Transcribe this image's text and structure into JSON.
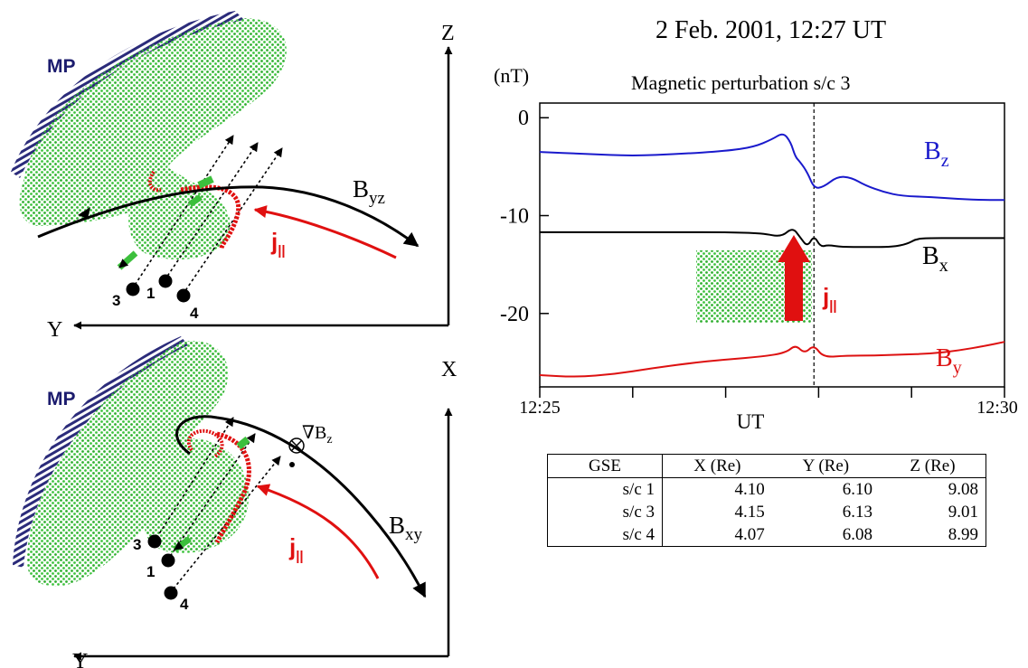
{
  "colors": {
    "bz": "#1a1acc",
    "bx": "#000000",
    "by": "#dd1111",
    "current": "#e01010",
    "region": "#3cbf3c",
    "mp_hatch": "#2b2b7a",
    "mp_label": "#1c1c6e"
  },
  "top_diagram": {
    "mp_label": "MP",
    "axis_vertical": "Z",
    "axis_horizontal": "Y",
    "field_label_main": "B",
    "field_label_sub": "yz",
    "current_label_main": "j",
    "current_label_sub": "||",
    "sc_labels": [
      "3",
      "1",
      "4"
    ]
  },
  "bottom_diagram": {
    "mp_label": "MP",
    "axis_vertical": "X",
    "axis_horizontal": "Y",
    "field_label_main": "B",
    "field_label_sub": "xy",
    "current_label_main": "j",
    "current_label_sub": "||",
    "gradient_symbol": "∇",
    "gradient_label_main": "B",
    "gradient_label_sub": "z",
    "sc_labels": [
      "3",
      "1",
      "4"
    ]
  },
  "chart_data": {
    "type": "line",
    "title": "2 Feb. 2001, 12:27 UT",
    "subtitle": "Magnetic perturbation s/c 3",
    "ylabel": "(nT)",
    "xlabel": "UT",
    "x_start_label": "12:25",
    "x_end_label": "12:30",
    "xlim_minutes": [
      0,
      5
    ],
    "ylim": [
      -27.5,
      1.5
    ],
    "yticks": [
      0,
      -10,
      -20
    ],
    "ytick_labels": [
      "0",
      "-10",
      "-20"
    ],
    "event_marker_minute": 2.95,
    "series": [
      {
        "name_main": "B",
        "name_sub": "z",
        "color": "#1a1acc",
        "x": [
          0,
          0.5,
          1.0,
          1.5,
          2.0,
          2.3,
          2.5,
          2.62,
          2.7,
          2.75,
          2.8,
          2.88,
          2.95,
          3.05,
          3.2,
          3.35,
          3.5,
          3.7,
          3.9,
          4.2,
          4.5,
          4.8,
          5.0
        ],
        "values": [
          -3.5,
          -3.7,
          -3.9,
          -3.7,
          -3.4,
          -3.0,
          -2.2,
          -1.5,
          -2.5,
          -4.0,
          -4.5,
          -5.6,
          -7.2,
          -7.1,
          -6.0,
          -6.1,
          -6.9,
          -7.6,
          -8.0,
          -8.1,
          -8.3,
          -8.4,
          -8.4
        ]
      },
      {
        "name_main": "B",
        "name_sub": "x",
        "color": "#000000",
        "x": [
          0,
          0.5,
          1.0,
          1.5,
          2.0,
          2.4,
          2.6,
          2.72,
          2.8,
          2.88,
          2.95,
          3.02,
          3.1,
          3.25,
          3.5,
          3.8,
          3.95,
          4.05,
          4.15,
          4.5,
          5.0
        ],
        "values": [
          -11.7,
          -11.7,
          -11.7,
          -11.7,
          -11.7,
          -11.8,
          -12.2,
          -11.2,
          -12.2,
          -13.2,
          -12.0,
          -13.2,
          -13.0,
          -13.2,
          -13.2,
          -13.2,
          -12.9,
          -12.4,
          -12.3,
          -12.3,
          -12.3
        ]
      },
      {
        "name_main": "B",
        "name_sub": "y",
        "color": "#dd1111",
        "x": [
          0,
          0.4,
          0.8,
          1.2,
          1.6,
          2.0,
          2.4,
          2.65,
          2.75,
          2.85,
          2.95,
          3.05,
          3.3,
          3.6,
          3.9,
          4.2,
          4.5,
          4.8,
          5.0
        ],
        "values": [
          -26.3,
          -26.5,
          -26.2,
          -25.6,
          -25.1,
          -24.7,
          -24.4,
          -24.0,
          -23.2,
          -24.1,
          -23.2,
          -24.5,
          -24.3,
          -24.3,
          -24.2,
          -24.1,
          -23.8,
          -23.3,
          -22.9
        ]
      }
    ],
    "inset_current_label_main": "j",
    "inset_current_label_sub": "||"
  },
  "table": {
    "headers": [
      "GSE",
      "X (Re)",
      "Y (Re)",
      "Z (Re)"
    ],
    "rows": [
      [
        "s/c 1",
        "4.10",
        "6.10",
        "9.08"
      ],
      [
        "s/c 3",
        "4.15",
        "6.13",
        "9.01"
      ],
      [
        "s/c 4",
        "4.07",
        "6.08",
        "8.99"
      ]
    ]
  }
}
